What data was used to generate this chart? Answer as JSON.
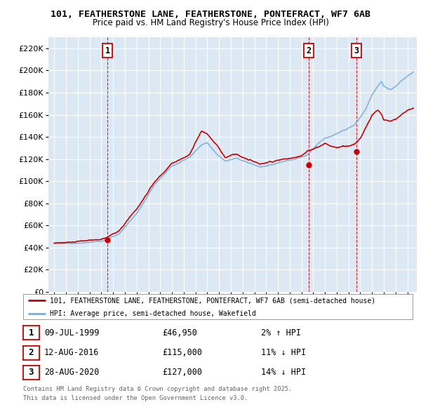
{
  "title_line1": "101, FEATHERSTONE LANE, FEATHERSTONE, PONTEFRACT, WF7 6AB",
  "title_line2": "Price paid vs. HM Land Registry's House Price Index (HPI)",
  "plot_bg_color": "#dce9f5",
  "grid_color": "#ffffff",
  "red_color": "#cc0000",
  "blue_color": "#7aadd4",
  "ylim": [
    0,
    230000
  ],
  "xlim_start": 1994.5,
  "xlim_end": 2025.8,
  "purchase_years": [
    1999.52,
    2016.62,
    2020.66
  ],
  "purchase_prices": [
    46950,
    115000,
    127000
  ],
  "purchase_labels": [
    "1",
    "2",
    "3"
  ],
  "legend_label_red": "101, FEATHERSTONE LANE, FEATHERSTONE, PONTEFRACT, WF7 6AB (semi-detached house)",
  "legend_label_blue": "HPI: Average price, semi-detached house, Wakefield",
  "table_entries": [
    {
      "num": "1",
      "date": "09-JUL-1999",
      "price": "£46,950",
      "pct": "2% ↑ HPI"
    },
    {
      "num": "2",
      "date": "12-AUG-2016",
      "price": "£115,000",
      "pct": "11% ↓ HPI"
    },
    {
      "num": "3",
      "date": "28-AUG-2020",
      "price": "£127,000",
      "pct": "14% ↓ HPI"
    }
  ],
  "footer_line1": "Contains HM Land Registry data © Crown copyright and database right 2025.",
  "footer_line2": "This data is licensed under the Open Government Licence v3.0."
}
